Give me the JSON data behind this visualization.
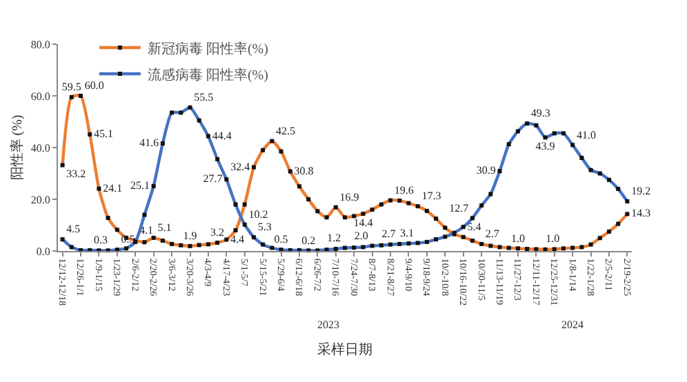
{
  "chart_data": {
    "type": "line",
    "xlabel": "采样日期",
    "ylabel": "阳性率 (%)",
    "categories": [
      "12/12-12/18",
      null,
      "12/26-1/1",
      null,
      "1/9-1/15",
      null,
      "1/23-1/29",
      null,
      "2/6-2/12",
      null,
      "2/20-2/26",
      null,
      "3/6-3/12",
      null,
      "3/20-3/26",
      null,
      "4/3-4/9",
      null,
      "4/17-4/23",
      null,
      "5/1-5/7",
      null,
      "5/15-5/21",
      null,
      "5/29-6/4",
      null,
      "6/12-6/18",
      null,
      "6/26-7/2",
      null,
      "7/10-7/16",
      null,
      "7/24-7/30",
      null,
      "8/7-8/13",
      null,
      "8/21-8/27",
      null,
      "9/4-9/10",
      null,
      "9/18-9/24",
      null,
      "10/2-10/8",
      null,
      "10/16-10/22",
      null,
      "10/30-11/5",
      null,
      "11/13-11/19",
      null,
      "11/27-12/3",
      null,
      "12/11-12/17",
      null,
      "12/25-12/31",
      null,
      "1/8-1/14",
      null,
      "1/22-1/28",
      null,
      "2/5-2/11",
      null,
      "2/19-2/25"
    ],
    "series": [
      {
        "name": "新冠病毒 阳性率(%)",
        "color": "#ed7d31",
        "values": [
          33.2,
          59.5,
          60.0,
          45.1,
          24.1,
          12.8,
          8.2,
          5.1,
          4.1,
          3.4,
          5.1,
          4.0,
          2.7,
          2.2,
          1.9,
          2.3,
          2.6,
          3.2,
          4.4,
          8.0,
          18.0,
          32.4,
          39.0,
          42.5,
          38.5,
          30.8,
          25.0,
          20.0,
          15.4,
          13.0,
          16.9,
          13.0,
          13.5,
          14.4,
          16.0,
          18.0,
          19.6,
          19.5,
          18.5,
          17.3,
          15.5,
          12.5,
          9.0,
          6.5,
          5.4,
          4.0,
          2.7,
          2.0,
          1.5,
          1.2,
          1.0,
          0.8,
          0.7,
          0.6,
          0.7,
          1.0,
          1.2,
          1.5,
          2.5,
          5.0,
          7.5,
          10.5,
          14.3
        ],
        "value_labels": [
          "33.2",
          "59.5",
          "60.0",
          "45.1",
          "24.1",
          null,
          null,
          null,
          "4.1",
          null,
          "5.1",
          null,
          null,
          null,
          "1.9",
          null,
          null,
          "3.2",
          "4.4",
          null,
          null,
          "32.4",
          null,
          "42.5",
          null,
          "30.8",
          null,
          null,
          null,
          null,
          "16.9",
          null,
          null,
          "14.4",
          null,
          null,
          "19.6",
          null,
          null,
          "17.3",
          null,
          null,
          null,
          null,
          "5.4",
          null,
          "2.7",
          null,
          null,
          null,
          "1.0",
          null,
          null,
          null,
          null,
          "1.0",
          null,
          null,
          null,
          null,
          null,
          null,
          "14.3"
        ]
      },
      {
        "name": "流感病毒 阳性率(%)",
        "color": "#4472c4",
        "values": [
          4.5,
          1.5,
          0.3,
          0.3,
          0.2,
          0.2,
          0.5,
          1.0,
          3.5,
          14.0,
          25.1,
          41.6,
          53.5,
          53.5,
          55.5,
          50.5,
          44.4,
          35.5,
          27.7,
          18.0,
          10.2,
          5.3,
          2.5,
          1.2,
          0.5,
          0.3,
          0.3,
          0.2,
          0.2,
          0.5,
          0.8,
          1.2,
          1.3,
          1.5,
          2.0,
          2.2,
          2.5,
          2.7,
          2.9,
          3.1,
          3.5,
          4.5,
          5.5,
          7.0,
          9.3,
          12.7,
          17.6,
          22.0,
          30.9,
          41.3,
          46.3,
          49.3,
          48.6,
          43.9,
          45.5,
          45.5,
          41.0,
          36.0,
          31.3,
          30.0,
          27.5,
          24.0,
          19.2
        ],
        "value_labels": [
          "4.5",
          null,
          null,
          "0.3",
          null,
          null,
          "0.5",
          null,
          null,
          null,
          "25.1",
          "41.6",
          null,
          null,
          "55.5",
          null,
          "44.4",
          null,
          "27.7",
          null,
          "10.2",
          "5.3",
          null,
          null,
          "0.5",
          null,
          null,
          "0.2",
          null,
          null,
          null,
          "1.2",
          null,
          null,
          "2.0",
          null,
          null,
          "2.7",
          null,
          "3.1",
          null,
          null,
          null,
          null,
          null,
          "12.7",
          null,
          null,
          "30.9",
          null,
          null,
          "49.3",
          null,
          "43.9",
          null,
          null,
          "41.0",
          null,
          null,
          null,
          null,
          null,
          "19.2"
        ]
      }
    ],
    "ylim": [
      0,
      80
    ],
    "yticks": [
      {
        "value": 0,
        "label": "0.0"
      },
      {
        "value": 20,
        "label": "20.0"
      },
      {
        "value": 40,
        "label": "40.0"
      },
      {
        "value": 60,
        "label": "60.0"
      },
      {
        "value": 80,
        "label": "80.0"
      }
    ],
    "annotations": [
      "2023",
      "2024"
    ],
    "legend": "top left",
    "marker": "square",
    "line_style": "solid"
  }
}
